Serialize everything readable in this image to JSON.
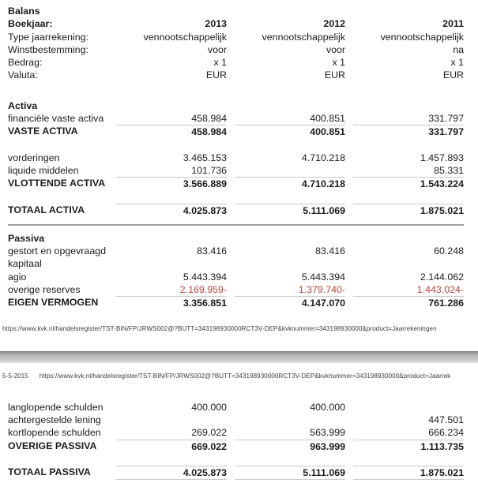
{
  "document": {
    "footer_url_page1": "https://www.kvk.nl/handelsregister/TST-BIN/FP/JRWS002@?BUTT=343198930000RCT3V-DEP&kvknummer=343198930000&product=Jaarrekeningen",
    "page2_header_date": "5-5-2015",
    "page2_header_url": "https://www.kvk.nl/handelsregister/TST-BIN/FP/JRWS002@?BUTT=343198930000RCT3V-DEP&kvknummer=343198930000&product=Jaarrek"
  },
  "colors": {
    "negative_value": "#b5443f",
    "rule_line": "#c9c9c9",
    "section_line": "#9e9e9e"
  },
  "balance_sheet_page1": {
    "rows": [
      {
        "type": "title",
        "label": "Balans",
        "values": [
          "",
          "",
          ""
        ]
      },
      {
        "type": "meta-bold",
        "label": "Boekjaar:",
        "values": [
          "2013",
          "2012",
          "2011"
        ]
      },
      {
        "type": "meta",
        "label": "Type jaarrekening:",
        "values": [
          "vennootschappelijk",
          "vennootschappelijk",
          "vennootschappelijk"
        ]
      },
      {
        "type": "meta",
        "label": "Winstbestemming:",
        "values": [
          "voor",
          "voor",
          "na"
        ]
      },
      {
        "type": "meta",
        "label": "Bedrag:",
        "values": [
          "x 1",
          "x 1",
          "x 1"
        ]
      },
      {
        "type": "meta",
        "label": "Valuta:",
        "values": [
          "EUR",
          "EUR",
          "EUR"
        ]
      },
      {
        "type": "spacer-lg"
      },
      {
        "type": "title",
        "label": "Activa",
        "values": [
          "",
          "",
          ""
        ]
      },
      {
        "type": "item",
        "label": "financiële vaste activa",
        "values": [
          "458.984",
          "400.851",
          "331.797"
        ]
      },
      {
        "type": "total",
        "label": "VASTE ACTIVA",
        "values": [
          "458.984",
          "400.851",
          "331.797"
        ]
      },
      {
        "type": "spacer"
      },
      {
        "type": "item",
        "label": "vorderingen",
        "values": [
          "3.465.153",
          "4.710.218",
          "1.457.893"
        ]
      },
      {
        "type": "item",
        "label": "liquide middelen",
        "values": [
          "101.736",
          "",
          "85.331"
        ]
      },
      {
        "type": "total",
        "label": "VLOTTENDE ACTIVA",
        "values": [
          "3.566.889",
          "4.710.218",
          "1.543.224"
        ]
      },
      {
        "type": "spacer"
      },
      {
        "type": "total",
        "label": "TOTAAL ACTIVA",
        "values": [
          "4.025.873",
          "5.111.069",
          "1.875.021"
        ]
      },
      {
        "type": "endline"
      },
      {
        "type": "title",
        "label": "Passiva",
        "values": [
          "",
          "",
          ""
        ]
      },
      {
        "type": "item",
        "label": "gestort en opgevraagd",
        "values": [
          "83.416",
          "83.416",
          "60.248"
        ]
      },
      {
        "type": "item",
        "label": "kapitaal",
        "values": [
          "",
          "",
          ""
        ]
      },
      {
        "type": "item",
        "label": "agio",
        "values": [
          "5.443.394",
          "5.443.394",
          "2.144.062"
        ]
      },
      {
        "type": "item",
        "label": "overige reserves",
        "values": [
          "2.169.959-",
          "1.379.740-",
          "1.443.024-"
        ]
      },
      {
        "type": "total",
        "label": "EIGEN VERMOGEN",
        "values": [
          "3.356.851",
          "4.147.070",
          "761.286"
        ]
      }
    ]
  },
  "balance_sheet_page2": {
    "rows": [
      {
        "type": "item",
        "label": "langlopende schulden",
        "values": [
          "400.000",
          "400.000",
          ""
        ]
      },
      {
        "type": "item",
        "label": "achtergestelde lening",
        "values": [
          "",
          "",
          "447.501"
        ]
      },
      {
        "type": "item",
        "label": "kortlopende schulden",
        "values": [
          "269.022",
          "563.999",
          "666.234"
        ]
      },
      {
        "type": "total",
        "label": "OVERIGE PASSIVA",
        "values": [
          "669.022",
          "963.999",
          "1.113.735"
        ]
      },
      {
        "type": "spacer"
      },
      {
        "type": "total-end",
        "label": "TOTAAL PASSIVA",
        "values": [
          "4.025.873",
          "5.111.069",
          "1.875.021"
        ]
      }
    ]
  }
}
